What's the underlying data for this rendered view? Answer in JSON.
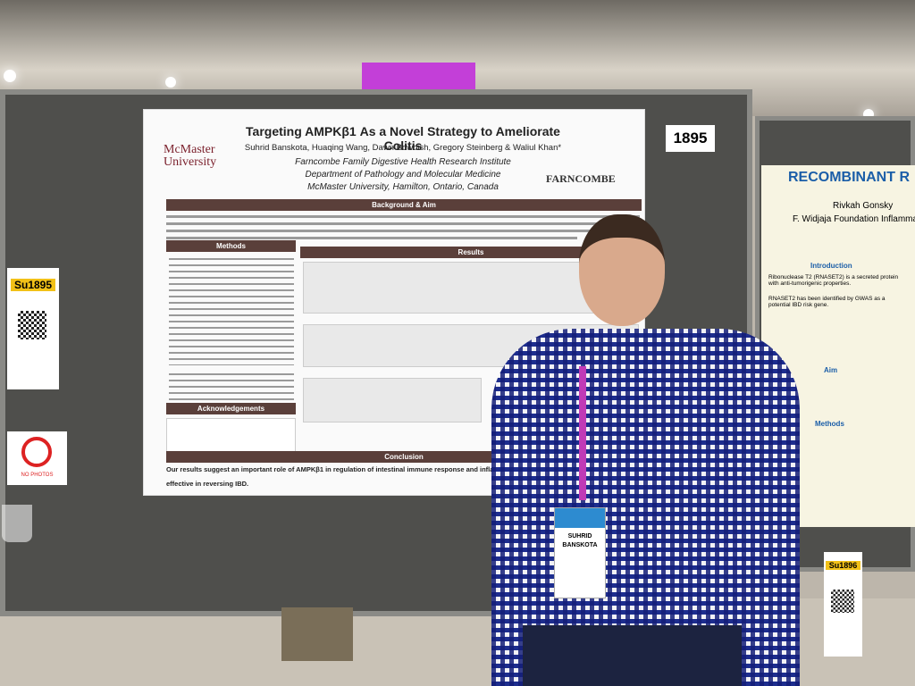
{
  "poster": {
    "title": "Targeting AMPKβ1 As a Novel Strategy to Ameliorate Colitis",
    "logo": "McMaster University",
    "authors": "Suhrid Banskota, Huaqing Wang, Dawn Bowdish, Gregory Steinberg & Waliul Khan*",
    "institute": "Farncombe Family Digestive Health Research Institute",
    "department": "Department of Pathology and Molecular Medicine",
    "address": "McMaster University, Hamilton, Ontario, Canada",
    "partner_logo": "FARNCOMBE",
    "sections": [
      "Background & Aim",
      "Methods",
      "Results",
      "Acknowledgements",
      "Conclusion"
    ],
    "conclusion": "Our results suggest an important role of AMPKβ1 in regulation of intestinal immune response and inflammation. Thus",
    "conclusion_end": "effective in reversing IBD."
  },
  "board_number": "1895",
  "neighbor_poster": {
    "title": "RECOMBINANT R",
    "author": "Rivkah Gonsky",
    "affiliation": "F. Widjaja Foundation Inflamma",
    "sections": [
      "Introduction",
      "Aim",
      "Methods"
    ],
    "intro_points": [
      "Ribonuclease T2 (RNASET2) is a secreted protein with anti-tumorigenic properties.",
      "RNASET2 has been identified by GWAS as a potential IBD risk gene."
    ]
  },
  "tags": [
    "Su1895",
    "Su1896"
  ],
  "sign": "NO PHOTOS",
  "badge": {
    "first_name": "SUHRID",
    "last_name": "BANSKOTA"
  }
}
